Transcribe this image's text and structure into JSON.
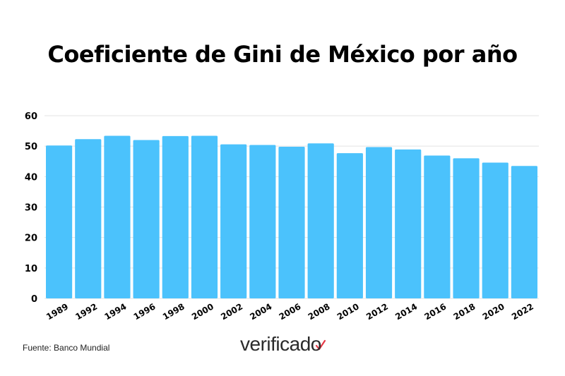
{
  "title": "Coeficiente de Gini de México por año",
  "source": "Fuente: Banco Mundial",
  "brand": {
    "logo_text": "verificado",
    "logo_mark_color": "#e63946"
  },
  "colors": {
    "bar": "#4bc2fc",
    "grid": "#e3e3e3",
    "text": "#000000"
  },
  "chart_data": {
    "type": "bar",
    "title": "Coeficiente de Gini de México por año",
    "xlabel": "",
    "ylabel": "",
    "categories": [
      "1989",
      "1992",
      "1994",
      "1996",
      "1998",
      "2000",
      "2002",
      "2004",
      "2006",
      "2008",
      "2010",
      "2012",
      "2014",
      "2016",
      "2018",
      "2020",
      "2022"
    ],
    "values": [
      50.2,
      52.3,
      53.4,
      52.0,
      53.3,
      53.4,
      50.6,
      50.4,
      49.8,
      50.9,
      47.7,
      49.7,
      48.9,
      46.9,
      46.0,
      44.6,
      43.5
    ],
    "ylim": [
      0,
      60
    ],
    "yticks": [
      0,
      10,
      20,
      30,
      40,
      50,
      60
    ],
    "grid": true,
    "legend": "none"
  }
}
